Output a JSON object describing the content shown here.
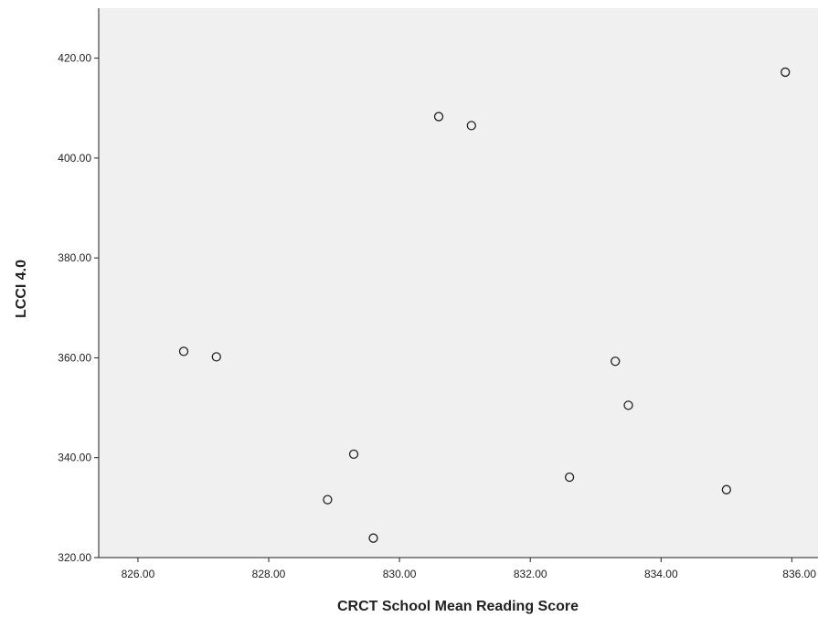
{
  "chart_data": {
    "type": "scatter",
    "title": "",
    "xlabel": "CRCT School Mean Reading Score",
    "ylabel": "LCCI 4.0",
    "xlim": [
      825.4,
      836.4
    ],
    "ylim": [
      320,
      430
    ],
    "xticks": [
      826,
      828,
      830,
      832,
      834,
      836
    ],
    "xtick_labels": [
      "826.00",
      "828.00",
      "830.00",
      "832.00",
      "834.00",
      "836.00"
    ],
    "yticks": [
      320,
      340,
      360,
      380,
      400,
      420
    ],
    "ytick_labels": [
      "320.00",
      "340.00",
      "360.00",
      "380.00",
      "400.00",
      "420.00"
    ],
    "grid": false,
    "background": "#f0f0f0",
    "marker": "hollow-circle",
    "points": [
      {
        "x": 826.7,
        "y": 361.3
      },
      {
        "x": 827.2,
        "y": 360.2
      },
      {
        "x": 828.9,
        "y": 331.6
      },
      {
        "x": 829.3,
        "y": 340.7
      },
      {
        "x": 829.6,
        "y": 323.9
      },
      {
        "x": 830.6,
        "y": 408.3
      },
      {
        "x": 831.1,
        "y": 406.5
      },
      {
        "x": 832.6,
        "y": 336.1
      },
      {
        "x": 833.3,
        "y": 359.3
      },
      {
        "x": 833.5,
        "y": 350.5
      },
      {
        "x": 835.0,
        "y": 333.6
      },
      {
        "x": 835.9,
        "y": 417.2
      }
    ]
  }
}
